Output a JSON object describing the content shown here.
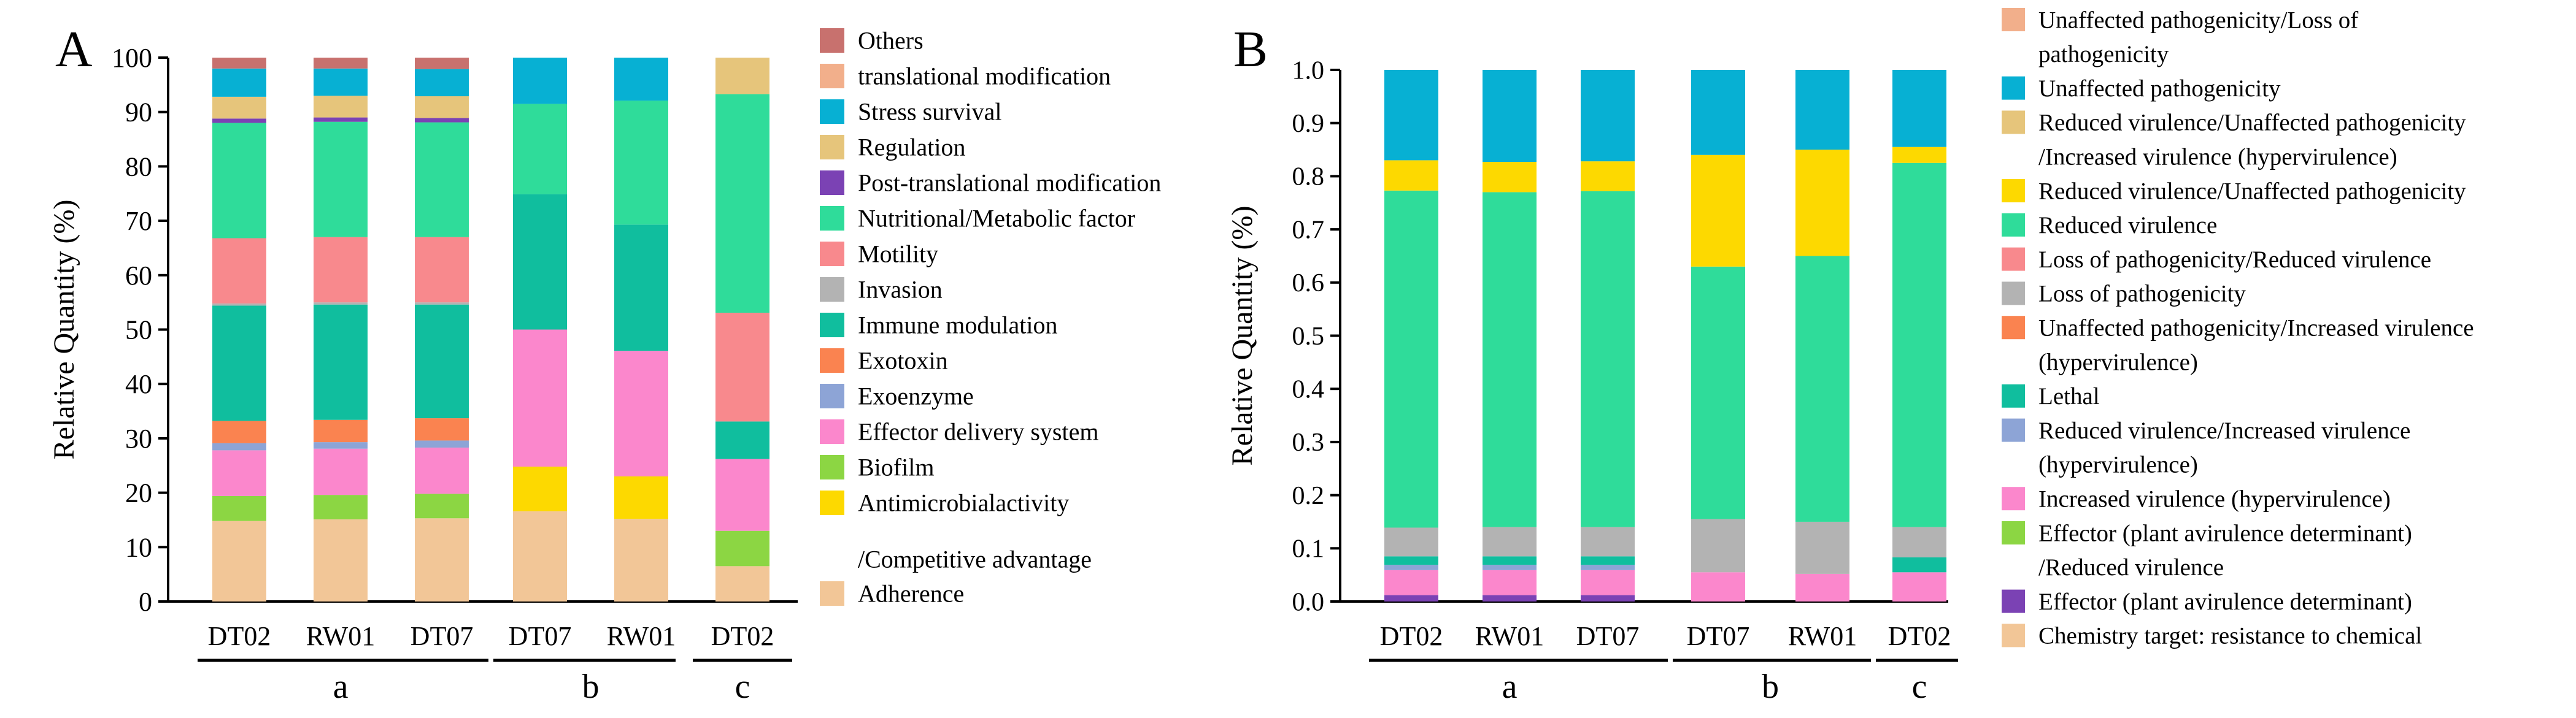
{
  "figure": {
    "panels": [
      "A",
      "B"
    ]
  },
  "chart_data": [
    {
      "panel_label": "A",
      "type": "bar",
      "stacked": true,
      "ylabel": "Relative Quantity (%)",
      "ylim": [
        0,
        100
      ],
      "yticks": [
        0,
        10,
        20,
        30,
        40,
        50,
        60,
        70,
        80,
        90,
        100
      ],
      "categories": [
        "DT02",
        "RW01",
        "DT07",
        "DT07",
        "RW01",
        "DT02"
      ],
      "groups": [
        {
          "label": "a",
          "from": 0,
          "to": 2
        },
        {
          "label": "b",
          "from": 3,
          "to": 4
        },
        {
          "label": "c",
          "from": 5,
          "to": 5
        }
      ],
      "series": [
        {
          "name": "Adherence",
          "color": "#F2C697",
          "values": [
            14.8,
            15.1,
            15.3,
            16.6,
            15.2,
            6.5
          ]
        },
        {
          "name": "Antimicrobialactivity /Competitive advantage",
          "color": "#FDD900",
          "values": [
            0,
            0,
            0,
            8.2,
            7.8,
            0
          ]
        },
        {
          "name": "Biofilm",
          "color": "#8CD643",
          "values": [
            4.6,
            4.5,
            4.5,
            0,
            0,
            6.5
          ]
        },
        {
          "name": "Effector delivery system",
          "color": "#FB87CC",
          "values": [
            8.4,
            8.5,
            8.5,
            25.2,
            23.1,
            13.2
          ]
        },
        {
          "name": "Exoenzyme",
          "color": "#8DA4D6",
          "values": [
            1.3,
            1.2,
            1.3,
            0,
            0,
            0
          ]
        },
        {
          "name": "Exotoxin",
          "color": "#FA8350",
          "values": [
            4.1,
            4.1,
            4.1,
            0,
            0,
            0
          ]
        },
        {
          "name": "Immune modulation",
          "color": "#10BE9E",
          "values": [
            21.2,
            21.2,
            20.9,
            24.9,
            23.2,
            6.9
          ]
        },
        {
          "name": "Invasion",
          "color": "#B3B3B3",
          "values": [
            0.4,
            0.4,
            0.4,
            0,
            0,
            0
          ]
        },
        {
          "name": "Motility",
          "color": "#F8898D",
          "values": [
            12.0,
            12.0,
            12.0,
            0,
            0,
            20.0
          ]
        },
        {
          "name": "Nutritional/Metabolic factor",
          "color": "#2FDC9A",
          "values": [
            21.2,
            21.2,
            21.1,
            16.6,
            22.8,
            40.2
          ]
        },
        {
          "name": "Post-translational modification",
          "color": "#7B42B4",
          "values": [
            0.8,
            0.8,
            0.8,
            0,
            0,
            0
          ]
        },
        {
          "name": "Regulation",
          "color": "#E6C57B",
          "values": [
            4.0,
            4.0,
            4.0,
            0,
            0,
            6.7
          ]
        },
        {
          "name": "Stress survival",
          "color": "#07B0D3",
          "values": [
            5.2,
            5.0,
            5.0,
            8.5,
            7.9,
            0
          ]
        },
        {
          "name": "translational modification",
          "color": "#F2AF8B",
          "values": [
            0,
            0,
            0,
            0,
            0,
            0
          ]
        },
        {
          "name": "Others",
          "color": "#C8716E",
          "values": [
            2.0,
            2.0,
            2.1,
            0,
            0,
            0
          ]
        }
      ],
      "legend": [
        "Others",
        "translational modification",
        "Stress survival",
        "Regulation",
        "Post-translational modification",
        "Nutritional/Metabolic factor",
        "Motility",
        "Invasion",
        "Immune modulation",
        "Exotoxin",
        "Exoenzyme",
        "Effector delivery system",
        "Biofilm",
        "Antimicrobialactivity",
        "/Competitive advantage",
        "Adherence"
      ]
    },
    {
      "panel_label": "B",
      "type": "bar",
      "stacked": true,
      "ylabel": "Relative Quantity (%)",
      "ylim": [
        0,
        1
      ],
      "yticks": [
        "0.0",
        "0.1",
        "0.2",
        "0.3",
        "0.4",
        "0.5",
        "0.6",
        "0.7",
        "0.8",
        "0.9",
        "1.0"
      ],
      "categories": [
        "DT02",
        "RW01",
        "DT07",
        "DT07",
        "RW01",
        "DT02"
      ],
      "groups": [
        {
          "label": "a",
          "from": 0,
          "to": 2
        },
        {
          "label": "b",
          "from": 3,
          "to": 4
        },
        {
          "label": "c",
          "from": 5,
          "to": 5
        }
      ],
      "series": [
        {
          "name": "Chemistry target: resistance to chemical",
          "color": "#F2C697",
          "values": [
            0,
            0,
            0,
            0,
            0,
            0
          ]
        },
        {
          "name": "Effector (plant avirulence determinant)",
          "color": "#7B42B4",
          "values": [
            0.012,
            0.012,
            0.012,
            0,
            0,
            0
          ]
        },
        {
          "name": "Effector (plant avirulence determinant) /Reduced virulence",
          "color": "#8CD643",
          "values": [
            0,
            0,
            0,
            0,
            0,
            0
          ]
        },
        {
          "name": "Increased virulence (hypervirulence)",
          "color": "#FB87CC",
          "values": [
            0.047,
            0.047,
            0.047,
            0.055,
            0.052,
            0.055
          ]
        },
        {
          "name": "Reduced virulence/Increased virulence (hypervirulence)",
          "color": "#8DA4D6",
          "values": [
            0.01,
            0.01,
            0.01,
            0,
            0,
            0
          ]
        },
        {
          "name": "Lethal",
          "color": "#10BE9E",
          "values": [
            0.016,
            0.016,
            0.016,
            0,
            0,
            0.028
          ]
        },
        {
          "name": "Unaffected pathogenicity/Increased virulence (hypervirulence)",
          "color": "#FA8350",
          "values": [
            0,
            0,
            0,
            0,
            0,
            0
          ]
        },
        {
          "name": "Loss of pathogenicity",
          "color": "#B3B3B3",
          "values": [
            0.054,
            0.055,
            0.055,
            0.1,
            0.098,
            0.057
          ]
        },
        {
          "name": "Loss of pathogenicity/Reduced virulence",
          "color": "#F8898D",
          "values": [
            0,
            0,
            0,
            0,
            0,
            0
          ]
        },
        {
          "name": "Reduced virulence",
          "color": "#2FDC9A",
          "values": [
            0.634,
            0.63,
            0.632,
            0.475,
            0.5,
            0.685
          ]
        },
        {
          "name": "Reduced virulence/Unaffected pathogenicity",
          "color": "#FDD900",
          "values": [
            0.057,
            0.057,
            0.056,
            0.21,
            0.2,
            0.03
          ]
        },
        {
          "name": "Reduced virulence/Unaffected pathogenicity /Increased virulence (hypervirulence)",
          "color": "#E6C57B",
          "values": [
            0,
            0,
            0,
            0,
            0,
            0
          ]
        },
        {
          "name": "Unaffected pathogenicity",
          "color": "#07B0D3",
          "values": [
            0.17,
            0.173,
            0.172,
            0.16,
            0.15,
            0.145
          ]
        },
        {
          "name": "Unaffected pathogenicity/Loss of pathogenicity",
          "color": "#F2AF8B",
          "values": [
            0,
            0,
            0,
            0,
            0,
            0
          ]
        }
      ],
      "legend": [
        "Unaffected pathogenicity/Loss of",
        " pathogenicity",
        "Unaffected pathogenicity",
        "Reduced virulence/Unaffected pathogenicity",
        "/Increased virulence (hypervirulence)",
        "Reduced virulence/Unaffected pathogenicity",
        "Reduced virulence",
        "Loss of pathogenicity/Reduced virulence",
        "Loss of pathogenicity",
        "Unaffected pathogenicity/Increased virulence",
        "(hypervirulence)",
        "Lethal",
        "Reduced virulence/Increased virulence",
        "(hypervirulence)",
        "Increased virulence (hypervirulence)",
        "Effector (plant avirulence determinant)",
        "/Reduced virulence",
        "Effector (plant avirulence determinant)",
        "Chemistry target: resistance to chemical"
      ]
    }
  ]
}
